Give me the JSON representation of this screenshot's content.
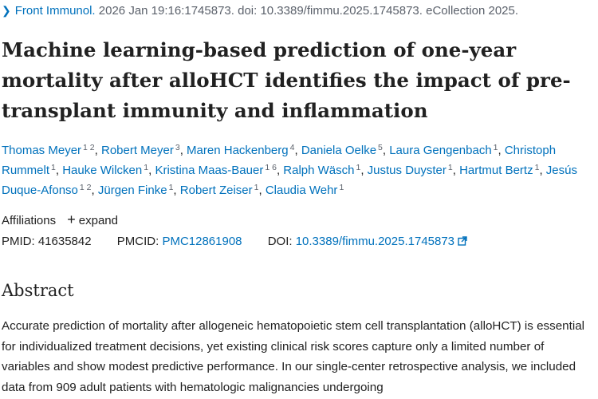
{
  "citation": {
    "journal": "Front Immunol.",
    "details": "2026 Jan 19:16:1745873. doi: 10.3389/fimmu.2025.1745873. eCollection 2025."
  },
  "article": {
    "title": "Machine learning-based prediction of one-year mortality after alloHCT identifies the impact of pre-transplant immunity and inflammation"
  },
  "authors": [
    {
      "name": "Thomas Meyer",
      "sup": "1 2"
    },
    {
      "name": "Robert Meyer",
      "sup": "3"
    },
    {
      "name": "Maren Hackenberg",
      "sup": "4"
    },
    {
      "name": "Daniela Oelke",
      "sup": "5"
    },
    {
      "name": "Laura Gengenbach",
      "sup": "1"
    },
    {
      "name": "Christoph Rummelt",
      "sup": "1"
    },
    {
      "name": "Hauke Wilcken",
      "sup": "1"
    },
    {
      "name": "Kristina Maas-Bauer",
      "sup": "1 6"
    },
    {
      "name": "Ralph Wäsch",
      "sup": "1"
    },
    {
      "name": "Justus Duyster",
      "sup": "1"
    },
    {
      "name": "Hartmut Bertz",
      "sup": "1"
    },
    {
      "name": "Jesús Duque-Afonso",
      "sup": "1 2"
    },
    {
      "name": "Jürgen Finke",
      "sup": "1"
    },
    {
      "name": "Robert Zeiser",
      "sup": "1"
    },
    {
      "name": "Claudia Wehr",
      "sup": "1"
    }
  ],
  "affiliations": {
    "label": "Affiliations",
    "expand_symbol": "+",
    "expand_label": "expand"
  },
  "identifiers": {
    "pmid_label": "PMID:",
    "pmid": "41635842",
    "pmcid_label": "PMCID:",
    "pmcid": "PMC12861908",
    "doi_label": "DOI:",
    "doi": "10.3389/fimmu.2025.1745873"
  },
  "abstract": {
    "heading": "Abstract",
    "text": "Accurate prediction of mortality after allogeneic hematopoietic stem cell transplantation (alloHCT) is essential for individualized treatment decisions, yet existing clinical risk scores capture only a limited number of variables and show modest predictive performance. In our single-center retrospective analysis, we included data from 909 adult patients with hematologic malignancies undergoing"
  },
  "icons": {
    "chevron": "chevron-right-icon",
    "plus": "plus-icon",
    "external": "external-link-icon"
  },
  "colors": {
    "link": "#0071bc",
    "text": "#212121",
    "muted": "#5b616b"
  }
}
